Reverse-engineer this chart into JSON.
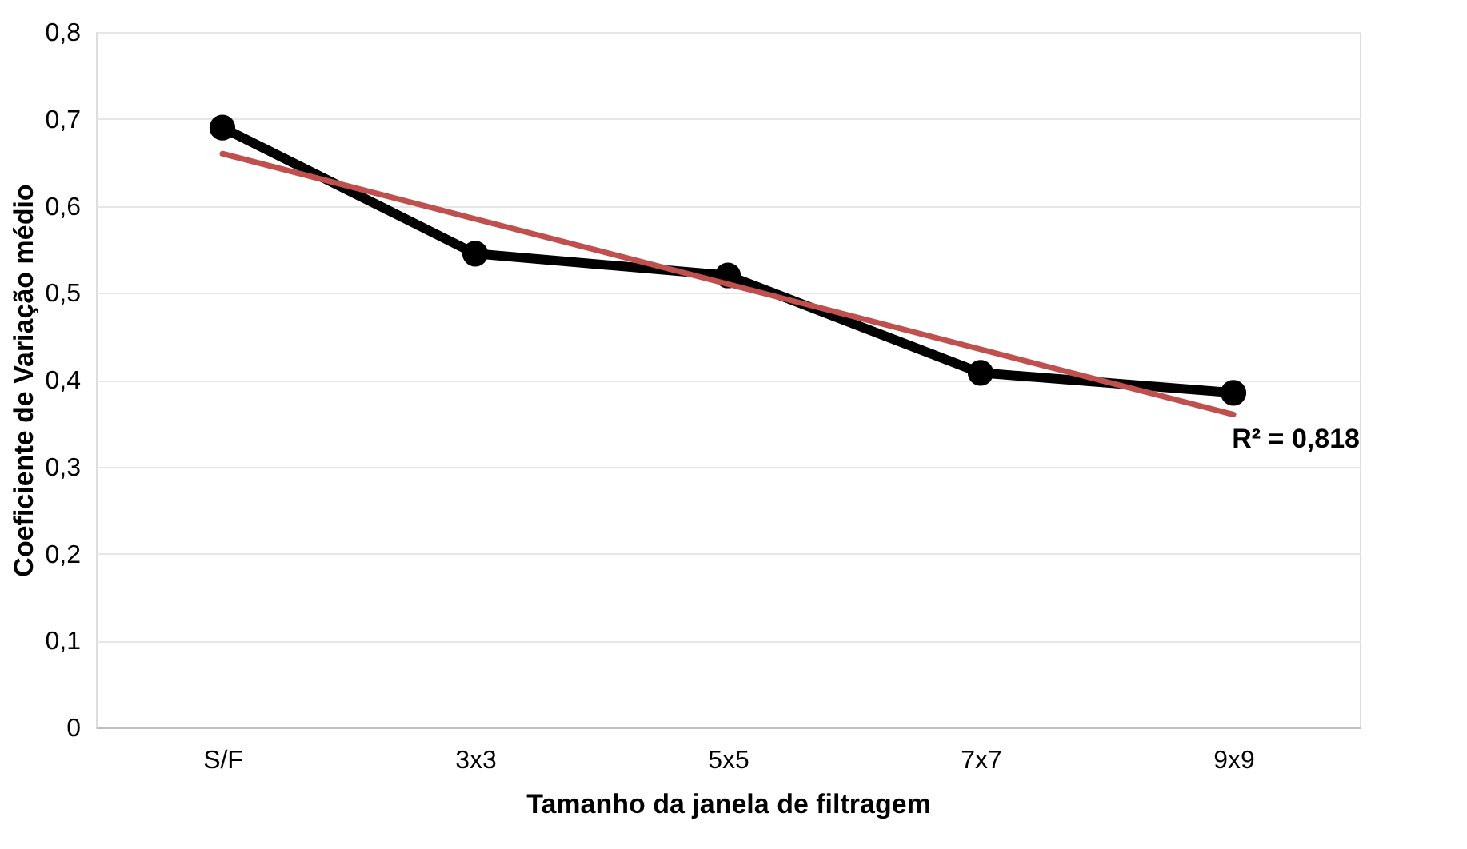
{
  "chart_data": {
    "type": "line",
    "xlabel": "Tamanho da janela de filtragem",
    "ylabel": "Coeficiente de Variação médio",
    "categories": [
      "S/F",
      "3x3",
      "5x5",
      "7x7",
      "9x9"
    ],
    "series": [
      {
        "color": "#000000",
        "values": [
          0.69,
          0.545,
          0.52,
          0.408,
          0.385
        ],
        "marker": "circle"
      },
      {
        "type": "line",
        "color": "#c0504d",
        "x": [
          "S/F",
          "3x3",
          "5x5",
          "7x7",
          "9x9"
        ],
        "values": [
          0.66,
          0.585,
          0.51,
          0.435,
          0.36
        ],
        "marker": "none"
      }
    ],
    "ylim": [
      0,
      0.8
    ],
    "yticks": [
      {
        "value": 0,
        "label": "0"
      },
      {
        "value": 0.1,
        "label": "0,1"
      },
      {
        "value": 0.2,
        "label": "0,2"
      },
      {
        "value": 0.3,
        "label": "0,3"
      },
      {
        "value": 0.4,
        "label": "0,4"
      },
      {
        "value": 0.5,
        "label": "0,5"
      },
      {
        "value": 0.6,
        "label": "0,6"
      },
      {
        "value": 0.7,
        "label": "0,7"
      },
      {
        "value": 0.8,
        "label": "0,8"
      }
    ],
    "annotations": [
      "R² = 0,818"
    ],
    "grid": "y",
    "line_style": "solid"
  }
}
